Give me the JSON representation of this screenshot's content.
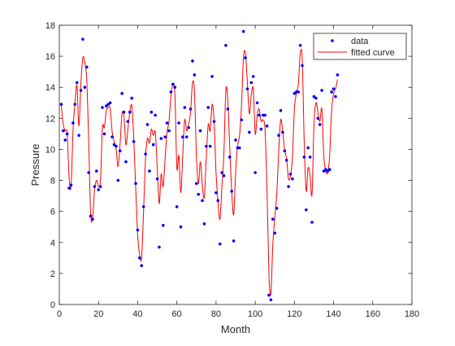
{
  "chart_data": {
    "type": "scatter",
    "title": "",
    "xlabel": "Month",
    "ylabel": "Pressure",
    "xlim": [
      0,
      180
    ],
    "ylim": [
      0,
      18
    ],
    "x_ticks": [
      0,
      20,
      40,
      60,
      80,
      100,
      120,
      140,
      160,
      180
    ],
    "y_ticks": [
      0,
      2,
      4,
      6,
      8,
      10,
      12,
      14,
      16,
      18
    ],
    "grid": false,
    "legend_position": "top-right",
    "legend": [
      {
        "label": "data",
        "marker": "dot",
        "color": "#0000ff"
      },
      {
        "label": "fitted curve",
        "marker": "line",
        "color": "#ff0000"
      }
    ],
    "series": [
      {
        "name": "data",
        "kind": "scatter",
        "color": "#0000ff",
        "points": [
          [
            1,
            12.9
          ],
          [
            2,
            11.2
          ],
          [
            3,
            10.6
          ],
          [
            4,
            11.0
          ],
          [
            5,
            7.5
          ],
          [
            6,
            7.7
          ],
          [
            7,
            11.7
          ],
          [
            8,
            12.9
          ],
          [
            9,
            14.3
          ],
          [
            10,
            10.9
          ],
          [
            11,
            13.8
          ],
          [
            12,
            17.1
          ],
          [
            13,
            14.0
          ],
          [
            14,
            15.3
          ],
          [
            15,
            8.5
          ],
          [
            16,
            5.7
          ],
          [
            17,
            5.5
          ],
          [
            18,
            7.6
          ],
          [
            19,
            8.6
          ],
          [
            20,
            7.4
          ],
          [
            21,
            7.6
          ],
          [
            22,
            12.7
          ],
          [
            23,
            11.0
          ],
          [
            24,
            12.8
          ],
          [
            25,
            12.9
          ],
          [
            26,
            13.0
          ],
          [
            27,
            10.8
          ],
          [
            28,
            10.3
          ],
          [
            29,
            10.2
          ],
          [
            30,
            8.0
          ],
          [
            31,
            9.9
          ],
          [
            32,
            13.6
          ],
          [
            33,
            12.4
          ],
          [
            34,
            9.2
          ],
          [
            35,
            11.8
          ],
          [
            36,
            12.4
          ],
          [
            37,
            13.3
          ],
          [
            38,
            10.5
          ],
          [
            39,
            7.8
          ],
          [
            40,
            4.8
          ],
          [
            41,
            3.0
          ],
          [
            42,
            2.5
          ],
          [
            43,
            6.3
          ],
          [
            44,
            9.7
          ],
          [
            45,
            11.6
          ],
          [
            46,
            8.6
          ],
          [
            47,
            12.4
          ],
          [
            48,
            10.3
          ],
          [
            49,
            12.2
          ],
          [
            50,
            8.1
          ],
          [
            51,
            3.7
          ],
          [
            52,
            10.7
          ],
          [
            53,
            5.1
          ],
          [
            54,
            10.8
          ],
          [
            55,
            11.7
          ],
          [
            56,
            11.2
          ],
          [
            57,
            13.7
          ],
          [
            58,
            14.2
          ],
          [
            59,
            14.0
          ],
          [
            60,
            6.3
          ],
          [
            61,
            11.7
          ],
          [
            62,
            5.0
          ],
          [
            63,
            10.8
          ],
          [
            64,
            12.7
          ],
          [
            65,
            10.8
          ],
          [
            66,
            11.4
          ],
          [
            67,
            12.6
          ],
          [
            68,
            15.7
          ],
          [
            69,
            14.8
          ],
          [
            70,
            7.8
          ],
          [
            71,
            7.1
          ],
          [
            72,
            11.2
          ],
          [
            73,
            6.7
          ],
          [
            74,
            5.2
          ],
          [
            75,
            10.2
          ],
          [
            76,
            12.7
          ],
          [
            77,
            10.2
          ],
          [
            78,
            14.7
          ],
          [
            79,
            11.8
          ],
          [
            80,
            7.2
          ],
          [
            81,
            6.7
          ],
          [
            82,
            3.9
          ],
          [
            83,
            8.5
          ],
          [
            84,
            8.3
          ],
          [
            85,
            16.7
          ],
          [
            86,
            12.6
          ],
          [
            87,
            9.5
          ],
          [
            88,
            7.3
          ],
          [
            89,
            4.1
          ],
          [
            90,
            10.6
          ],
          [
            91,
            10.1
          ],
          [
            92,
            10.1
          ],
          [
            93,
            11.9
          ],
          [
            94,
            17.6
          ],
          [
            95,
            15.9
          ],
          [
            96,
            13.9
          ],
          [
            97,
            11.1
          ],
          [
            98,
            14.3
          ],
          [
            99,
            14.7
          ],
          [
            100,
            8.5
          ],
          [
            101,
            13.0
          ],
          [
            102,
            12.2
          ],
          [
            103,
            11.3
          ],
          [
            104,
            12.2
          ],
          [
            105,
            12.2
          ],
          [
            106,
            11.5
          ],
          [
            107,
            0.6
          ],
          [
            108,
            0.3
          ],
          [
            109,
            5.5
          ],
          [
            110,
            4.6
          ],
          [
            111,
            6.2
          ],
          [
            112,
            10.9
          ],
          [
            113,
            12.5
          ],
          [
            114,
            11.1
          ],
          [
            115,
            9.9
          ],
          [
            116,
            9.3
          ],
          [
            117,
            7.6
          ],
          [
            118,
            8.4
          ],
          [
            119,
            8.1
          ],
          [
            120,
            13.6
          ],
          [
            121,
            13.7
          ],
          [
            122,
            13.7
          ],
          [
            123,
            16.7
          ],
          [
            124,
            15.4
          ],
          [
            125,
            9.5
          ],
          [
            126,
            6.1
          ],
          [
            127,
            10.1
          ],
          [
            128,
            9.5
          ],
          [
            129,
            5.3
          ],
          [
            130,
            13.4
          ],
          [
            131,
            13.3
          ],
          [
            132,
            12.0
          ],
          [
            133,
            11.6
          ],
          [
            134,
            13.8
          ],
          [
            135,
            8.6
          ],
          [
            136,
            8.7
          ],
          [
            137,
            8.6
          ],
          [
            138,
            8.7
          ],
          [
            139,
            13.7
          ],
          [
            140,
            13.9
          ],
          [
            141,
            13.4
          ],
          [
            142,
            14.8
          ]
        ]
      },
      {
        "name": "fitted curve",
        "kind": "line",
        "color": "#ff0000",
        "points": [
          [
            1,
            12.8
          ],
          [
            2,
            11.6
          ],
          [
            3,
            11.2
          ],
          [
            4,
            11.0
          ],
          [
            5,
            8.2
          ],
          [
            6,
            7.6
          ],
          [
            7,
            11.2
          ],
          [
            8,
            13.0
          ],
          [
            9,
            14.1
          ],
          [
            10,
            11.5
          ],
          [
            11,
            14.2
          ],
          [
            12,
            15.9
          ],
          [
            13,
            15.6
          ],
          [
            14,
            14.5
          ],
          [
            15,
            10.5
          ],
          [
            16,
            5.8
          ],
          [
            17,
            5.6
          ],
          [
            18,
            7.4
          ],
          [
            19,
            8.0
          ],
          [
            20,
            7.6
          ],
          [
            21,
            8.0
          ],
          [
            22,
            11.4
          ],
          [
            23,
            11.4
          ],
          [
            24,
            12.5
          ],
          [
            25,
            12.7
          ],
          [
            26,
            12.6
          ],
          [
            27,
            11.1
          ],
          [
            28,
            10.5
          ],
          [
            29,
            10.0
          ],
          [
            30,
            8.9
          ],
          [
            31,
            10.3
          ],
          [
            32,
            12.3
          ],
          [
            33,
            12.1
          ],
          [
            34,
            10.3
          ],
          [
            35,
            11.3
          ],
          [
            36,
            12.4
          ],
          [
            37,
            12.8
          ],
          [
            38,
            10.7
          ],
          [
            39,
            7.5
          ],
          [
            40,
            4.5
          ],
          [
            41,
            3.2
          ],
          [
            42,
            3.0
          ],
          [
            43,
            6.0
          ],
          [
            44,
            9.4
          ],
          [
            45,
            10.7
          ],
          [
            46,
            10.4
          ],
          [
            47,
            11.3
          ],
          [
            48,
            10.9
          ],
          [
            49,
            11.1
          ],
          [
            50,
            8.8
          ],
          [
            51,
            6.5
          ],
          [
            52,
            8.4
          ],
          [
            53,
            7.6
          ],
          [
            54,
            9.4
          ],
          [
            55,
            11.1
          ],
          [
            56,
            11.8
          ],
          [
            57,
            13.5
          ],
          [
            58,
            14.1
          ],
          [
            59,
            13.6
          ],
          [
            60,
            8.8
          ],
          [
            61,
            9.6
          ],
          [
            62,
            7.2
          ],
          [
            63,
            9.6
          ],
          [
            64,
            11.9
          ],
          [
            65,
            11.2
          ],
          [
            66,
            11.6
          ],
          [
            67,
            12.4
          ],
          [
            68,
            14.3
          ],
          [
            69,
            13.7
          ],
          [
            70,
            9.5
          ],
          [
            71,
            7.8
          ],
          [
            72,
            9.2
          ],
          [
            73,
            7.7
          ],
          [
            74,
            6.9
          ],
          [
            75,
            9.4
          ],
          [
            76,
            11.6
          ],
          [
            77,
            11.2
          ],
          [
            78,
            12.9
          ],
          [
            79,
            11.8
          ],
          [
            80,
            8.5
          ],
          [
            81,
            6.6
          ],
          [
            82,
            5.5
          ],
          [
            83,
            7.6
          ],
          [
            84,
            9.7
          ],
          [
            85,
            13.8
          ],
          [
            86,
            13.2
          ],
          [
            87,
            10.1
          ],
          [
            88,
            7.3
          ],
          [
            89,
            5.8
          ],
          [
            90,
            8.5
          ],
          [
            91,
            10.2
          ],
          [
            92,
            10.9
          ],
          [
            93,
            12.8
          ],
          [
            94,
            15.9
          ],
          [
            95,
            16.2
          ],
          [
            96,
            14.3
          ],
          [
            97,
            12.3
          ],
          [
            98,
            13.5
          ],
          [
            99,
            13.9
          ],
          [
            100,
            11.0
          ],
          [
            101,
            12.2
          ],
          [
            102,
            12.6
          ],
          [
            103,
            11.8
          ],
          [
            104,
            11.9
          ],
          [
            105,
            11.3
          ],
          [
            106,
            7.5
          ],
          [
            107,
            2.0
          ],
          [
            108,
            0.7
          ],
          [
            109,
            3.9
          ],
          [
            110,
            5.6
          ],
          [
            111,
            7.1
          ],
          [
            112,
            9.9
          ],
          [
            113,
            11.9
          ],
          [
            114,
            11.2
          ],
          [
            115,
            10.0
          ],
          [
            116,
            9.4
          ],
          [
            117,
            8.1
          ],
          [
            118,
            8.3
          ],
          [
            119,
            9.5
          ],
          [
            120,
            12.6
          ],
          [
            121,
            13.6
          ],
          [
            122,
            14.2
          ],
          [
            123,
            16.2
          ],
          [
            124,
            15.8
          ],
          [
            125,
            10.5
          ],
          [
            126,
            7.3
          ],
          [
            127,
            8.8
          ],
          [
            128,
            8.3
          ],
          [
            129,
            7.1
          ],
          [
            130,
            11.6
          ],
          [
            131,
            13.0
          ],
          [
            132,
            12.4
          ],
          [
            133,
            11.8
          ],
          [
            134,
            12.6
          ],
          [
            135,
            9.6
          ],
          [
            136,
            8.6
          ],
          [
            137,
            8.5
          ],
          [
            138,
            9.6
          ],
          [
            139,
            12.5
          ],
          [
            140,
            13.6
          ],
          [
            141,
            13.9
          ],
          [
            142,
            14.5
          ]
        ]
      }
    ]
  }
}
